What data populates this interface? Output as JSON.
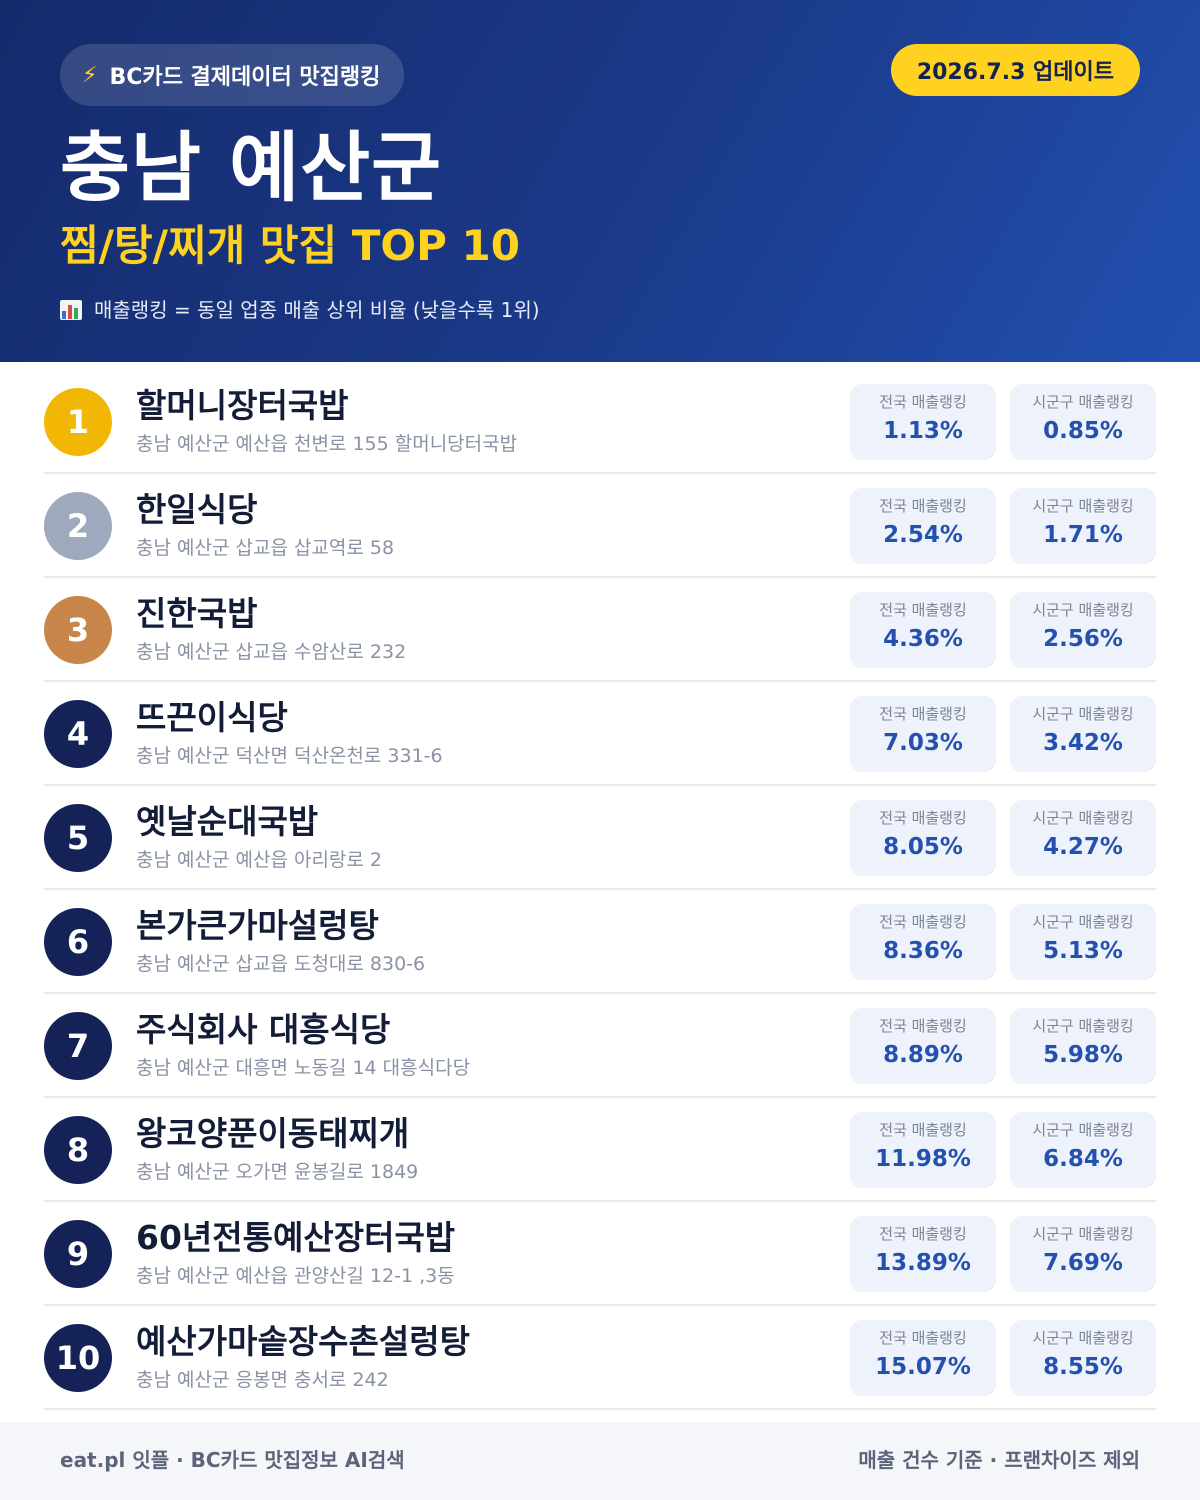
{
  "header": {
    "source_label": "BC카드 결제데이터 맛집랭킹",
    "source_icon": "lightning-bolt-icon",
    "update_label": "2026.7.3 업데이트",
    "region": "충남 예산군",
    "category": "찜/탕/찌개 맛집 TOP 10",
    "note_icon": "bar-chart-icon",
    "note": "매출랭킹 = 동일 업종 매출 상위 비율 (낮을수록 1위)"
  },
  "colors": {
    "header_bg": "#1b3a8a",
    "accent_yellow": "#ffd21f",
    "rank_gold": "#f2b705",
    "rank_silver": "#9ea9bd",
    "rank_bronze": "#c9864a",
    "rank_default": "#142257",
    "value_blue": "#2451b0"
  },
  "stat_labels": {
    "national": "전국 매출랭킹",
    "local": "시군구 매출랭킹"
  },
  "restaurants": [
    {
      "rank": "1",
      "name": "할머니장터국밥",
      "address": "충남 예산군 예산읍 천변로 155 할머니당터국밥",
      "national": "1.13%",
      "local": "0.85%"
    },
    {
      "rank": "2",
      "name": "한일식당",
      "address": "충남 예산군 삽교읍 삽교역로 58",
      "national": "2.54%",
      "local": "1.71%"
    },
    {
      "rank": "3",
      "name": "진한국밥",
      "address": "충남 예산군 삽교읍 수암산로 232",
      "national": "4.36%",
      "local": "2.56%"
    },
    {
      "rank": "4",
      "name": "뜨끈이식당",
      "address": "충남 예산군 덕산면 덕산온천로 331-6",
      "national": "7.03%",
      "local": "3.42%"
    },
    {
      "rank": "5",
      "name": "옛날순대국밥",
      "address": "충남 예산군 예산읍 아리랑로 2",
      "national": "8.05%",
      "local": "4.27%"
    },
    {
      "rank": "6",
      "name": "본가큰가마설렁탕",
      "address": "충남 예산군 삽교읍 도청대로 830-6",
      "national": "8.36%",
      "local": "5.13%"
    },
    {
      "rank": "7",
      "name": "주식회사 대흥식당",
      "address": "충남 예산군 대흥면 노동길 14 대흥식다당",
      "national": "8.89%",
      "local": "5.98%"
    },
    {
      "rank": "8",
      "name": "왕코양푼이동태찌개",
      "address": "충남 예산군 오가면 윤봉길로 1849",
      "national": "11.98%",
      "local": "6.84%"
    },
    {
      "rank": "9",
      "name": "60년전통예산장터국밥",
      "address": "충남 예산군 예산읍 관양산길 12-1 ,3동",
      "national": "13.89%",
      "local": "7.69%"
    },
    {
      "rank": "10",
      "name": "예산가마솥장수촌설렁탕",
      "address": "충남 예산군 응봉면 충서로 242",
      "national": "15.07%",
      "local": "8.55%"
    }
  ],
  "footer": {
    "left": "eat.pl 잇플 · BC카드 맛집정보 AI검색",
    "right": "매출 건수 기준 · 프랜차이즈 제외"
  }
}
